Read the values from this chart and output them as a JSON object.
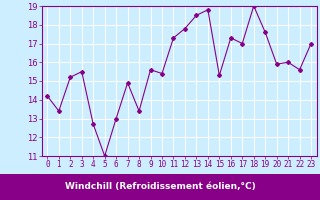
{
  "x": [
    0,
    1,
    2,
    3,
    4,
    5,
    6,
    7,
    8,
    9,
    10,
    11,
    12,
    13,
    14,
    15,
    16,
    17,
    18,
    19,
    20,
    21,
    22,
    23
  ],
  "y": [
    14.2,
    13.4,
    15.2,
    15.5,
    12.7,
    11.0,
    13.0,
    14.9,
    13.4,
    15.6,
    15.4,
    17.3,
    17.8,
    18.5,
    18.8,
    15.3,
    17.3,
    17.0,
    19.0,
    17.6,
    15.9,
    16.0,
    15.6,
    17.0
  ],
  "xlim": [
    -0.5,
    23.5
  ],
  "ylim": [
    11,
    19
  ],
  "yticks": [
    11,
    12,
    13,
    14,
    15,
    16,
    17,
    18,
    19
  ],
  "xticks": [
    0,
    1,
    2,
    3,
    4,
    5,
    6,
    7,
    8,
    9,
    10,
    11,
    12,
    13,
    14,
    15,
    16,
    17,
    18,
    19,
    20,
    21,
    22,
    23
  ],
  "xlabel": "Windchill (Refroidissement éolien,°C)",
  "line_color": "#880088",
  "marker": "D",
  "marker_size": 2,
  "bg_color": "#cceeff",
  "plot_bg_color": "#cceeff",
  "grid_color": "#ffffff",
  "xlabel_fontsize": 6.5,
  "tick_fontsize": 6,
  "xtick_fontsize": 5.5,
  "tick_color": "#880088",
  "label_color": "#ffffff",
  "xlabel_bg": "#880088",
  "spine_color": "#880088"
}
